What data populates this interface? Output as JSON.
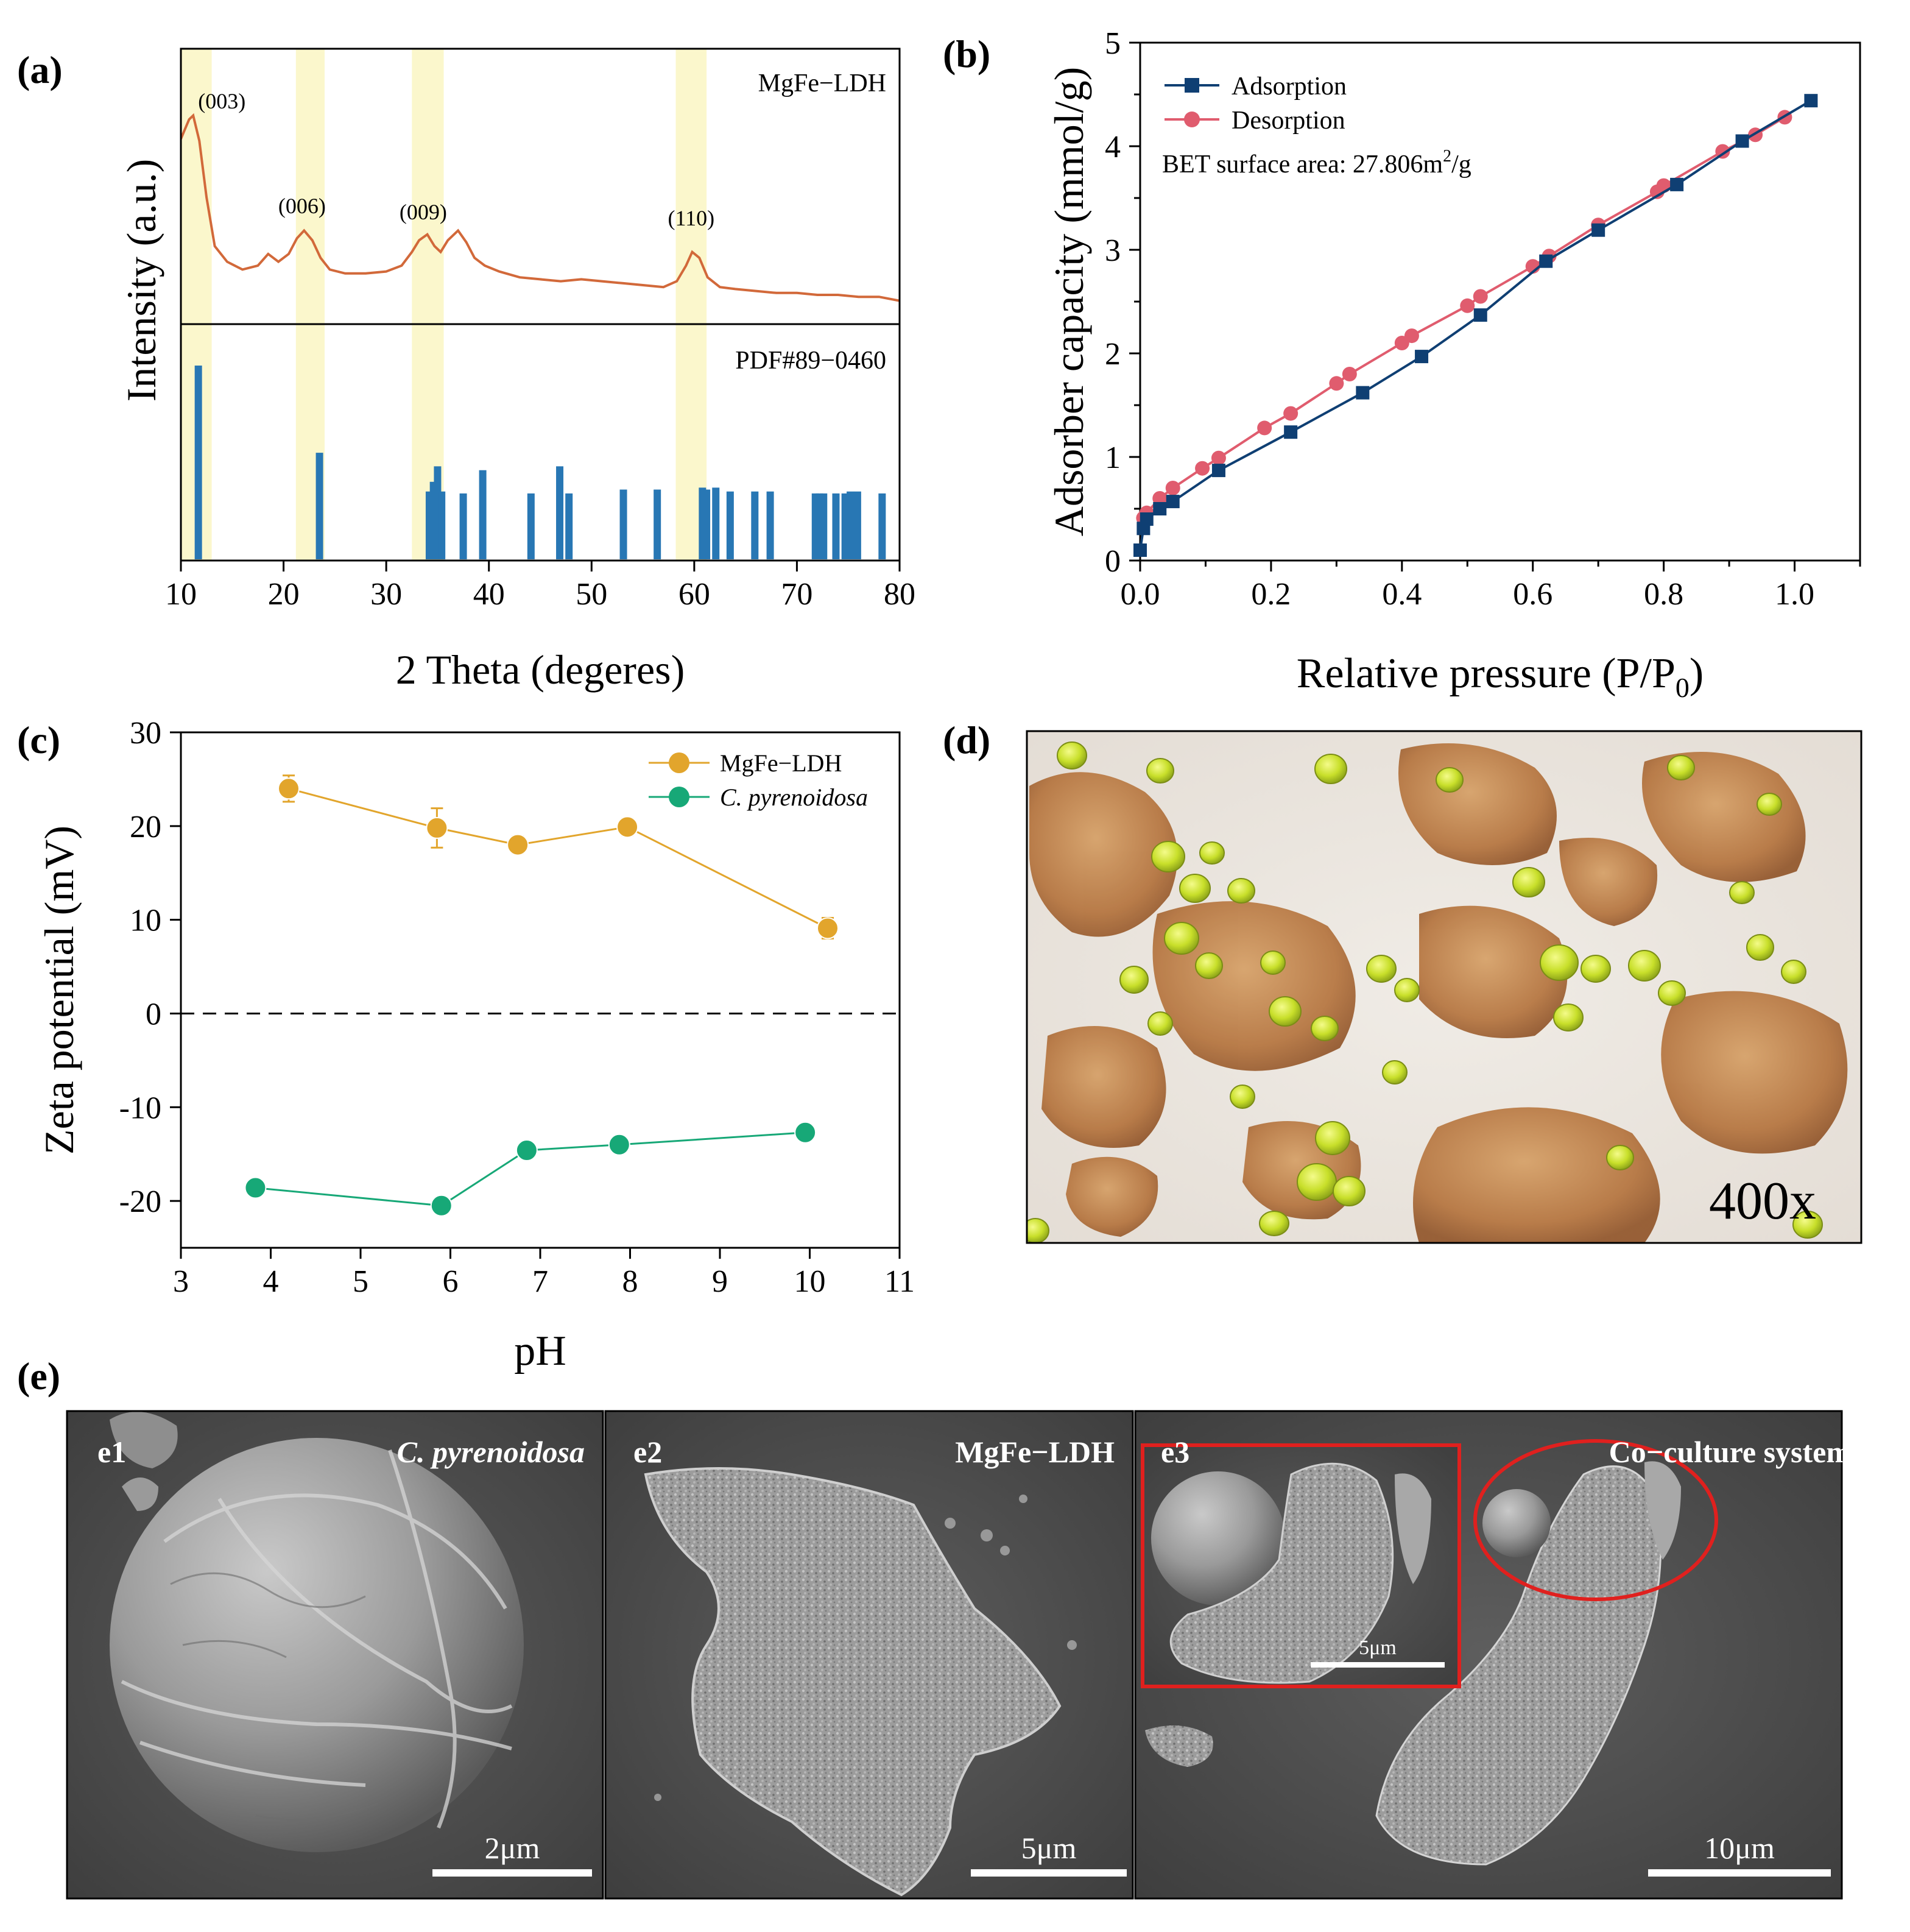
{
  "panel_labels": {
    "a": "(a)",
    "b": "(b)",
    "c": "(c)",
    "d": "(d)",
    "e": "(e)"
  },
  "colors": {
    "xrd_line": "#d2693a",
    "pdf_bar": "#2877b4",
    "highlight": "#fbf7cc",
    "adsorption": "#0f3f73",
    "desorption": "#e05c6e",
    "ldh_series": "#e2a52c",
    "algae_series": "#17a877"
  },
  "chart_data": [
    {
      "id": "a",
      "type": "line",
      "title": "",
      "xlabel": "2 Theta (degeres)",
      "ylabel": "Intensity (a.u.)",
      "xlim": [
        10,
        80
      ],
      "xticks": [
        "10",
        "20",
        "30",
        "40",
        "50",
        "60",
        "70",
        "80"
      ],
      "top_label": "MgFe−LDH",
      "bottom_label": "PDF#89−0460",
      "highlight_bands": [
        [
          10,
          13
        ],
        [
          21.2,
          24
        ],
        [
          32.5,
          35.6
        ],
        [
          58.2,
          61.2
        ]
      ],
      "peaks": [
        {
          "label": "(003)",
          "x": 11.5
        },
        {
          "label": "(006)",
          "x": 21.8
        },
        {
          "label": "(009)",
          "x": 33.6
        },
        {
          "label": "(110)",
          "x": 59.7
        }
      ],
      "pattern": {
        "x": [
          10,
          10.4,
          10.8,
          11.2,
          11.8,
          12.5,
          13.3,
          14.5,
          16,
          17.5,
          18.5,
          19.5,
          20.5,
          21.3,
          22,
          22.8,
          23.6,
          24.5,
          26,
          28,
          30,
          31.5,
          32.5,
          33.2,
          34,
          34.7,
          35.3,
          36,
          37,
          37.8,
          38.6,
          39.6,
          41,
          43,
          45,
          47,
          49,
          51,
          53,
          55,
          57,
          58.3,
          59.2,
          59.8,
          60.5,
          61.3,
          62.5,
          64,
          66,
          68,
          70,
          72,
          74,
          76,
          78,
          80
        ],
        "y": [
          0.85,
          0.9,
          0.95,
          0.97,
          0.84,
          0.55,
          0.3,
          0.22,
          0.18,
          0.2,
          0.26,
          0.22,
          0.26,
          0.34,
          0.38,
          0.33,
          0.24,
          0.18,
          0.16,
          0.16,
          0.17,
          0.2,
          0.27,
          0.33,
          0.36,
          0.3,
          0.27,
          0.33,
          0.38,
          0.32,
          0.24,
          0.2,
          0.17,
          0.14,
          0.13,
          0.12,
          0.13,
          0.12,
          0.11,
          0.1,
          0.09,
          0.12,
          0.2,
          0.27,
          0.24,
          0.14,
          0.09,
          0.08,
          0.07,
          0.06,
          0.06,
          0.05,
          0.05,
          0.04,
          0.04,
          0.02
        ]
      },
      "pdf_lines": [
        {
          "x": 11.7,
          "h": 100
        },
        {
          "x": 23.5,
          "h": 55
        },
        {
          "x": 34.2,
          "h": 35
        },
        {
          "x": 34.6,
          "h": 40
        },
        {
          "x": 35.0,
          "h": 48
        },
        {
          "x": 35.4,
          "h": 35
        },
        {
          "x": 37.5,
          "h": 34
        },
        {
          "x": 39.4,
          "h": 46
        },
        {
          "x": 44.1,
          "h": 34
        },
        {
          "x": 46.9,
          "h": 48
        },
        {
          "x": 47.8,
          "h": 34
        },
        {
          "x": 53.1,
          "h": 36
        },
        {
          "x": 56.4,
          "h": 36
        },
        {
          "x": 60.8,
          "h": 37
        },
        {
          "x": 61.2,
          "h": 36
        },
        {
          "x": 62.1,
          "h": 37
        },
        {
          "x": 63.5,
          "h": 35
        },
        {
          "x": 65.9,
          "h": 35
        },
        {
          "x": 67.4,
          "h": 35
        },
        {
          "x": 71.8,
          "h": 34
        },
        {
          "x": 72.2,
          "h": 34
        },
        {
          "x": 72.6,
          "h": 34
        },
        {
          "x": 73.8,
          "h": 34
        },
        {
          "x": 74.7,
          "h": 34
        },
        {
          "x": 75.2,
          "h": 35
        },
        {
          "x": 75.9,
          "h": 35
        },
        {
          "x": 78.3,
          "h": 34
        }
      ]
    },
    {
      "id": "b",
      "type": "line",
      "title": "",
      "xlabel": "Relative pressure (P/P",
      "xlabel_sub": "0",
      "xlabel_end": ")",
      "ylabel": "Adsorber capacity (mmol/g)",
      "xlim": [
        0,
        1.1
      ],
      "ylim": [
        0,
        5
      ],
      "xticks": [
        "0.0",
        "0.2",
        "0.4",
        "0.6",
        "0.8",
        "1.0"
      ],
      "yticks": [
        "0",
        "1",
        "2",
        "3",
        "4",
        "5"
      ],
      "annotation_prefix": "BET surface area: 27.806m",
      "annotation_sup": "2",
      "annotation_suffix": "/g",
      "series": [
        {
          "name": "Adsorption",
          "marker": "square",
          "x": [
            0.0,
            0.005,
            0.01,
            0.03,
            0.05,
            0.12,
            0.23,
            0.34,
            0.43,
            0.52,
            0.62,
            0.7,
            0.82,
            0.92,
            1.025
          ],
          "y": [
            0.1,
            0.31,
            0.4,
            0.5,
            0.57,
            0.87,
            1.24,
            1.62,
            1.97,
            2.37,
            2.89,
            3.19,
            3.63,
            4.05,
            4.44
          ]
        },
        {
          "name": "Desorption",
          "marker": "circle",
          "x": [
            0.005,
            0.01,
            0.03,
            0.05,
            0.095,
            0.12,
            0.19,
            0.23,
            0.3,
            0.32,
            0.4,
            0.415,
            0.5,
            0.52,
            0.6,
            0.625,
            0.7,
            0.79,
            0.8,
            0.89,
            0.94,
            0.985
          ],
          "y": [
            0.41,
            0.46,
            0.6,
            0.7,
            0.89,
            0.99,
            1.28,
            1.42,
            1.71,
            1.8,
            2.1,
            2.17,
            2.46,
            2.55,
            2.84,
            2.94,
            3.24,
            3.56,
            3.62,
            3.95,
            4.11,
            4.28
          ]
        }
      ]
    },
    {
      "id": "c",
      "type": "scatter",
      "title": "",
      "xlabel": "pH",
      "ylabel": "Zeta potential (mV)",
      "xlim": [
        3,
        11
      ],
      "ylim": [
        -25,
        30
      ],
      "xticks": [
        "3",
        "4",
        "5",
        "6",
        "7",
        "8",
        "9",
        "10",
        "11"
      ],
      "yticks": [
        "-20",
        "-10",
        "0",
        "10",
        "20",
        "30"
      ],
      "zero_line": true,
      "series": [
        {
          "name": "MgFe−LDH",
          "italic": false,
          "x": [
            4.2,
            5.85,
            6.75,
            7.97,
            10.2
          ],
          "y": [
            24,
            19.8,
            18,
            19.9,
            9.1
          ],
          "err": [
            1.4,
            2.1,
            0.9,
            0.9,
            1.1
          ]
        },
        {
          "name": "C. pyrenoidosa",
          "italic": true,
          "x": [
            3.83,
            5.9,
            6.85,
            7.88,
            9.95
          ],
          "y": [
            -18.6,
            -20.5,
            -14.6,
            -14.0,
            -12.7
          ],
          "err": [
            0.7,
            0.8,
            0.7,
            0.8,
            0.7
          ]
        }
      ]
    }
  ],
  "panel_d": {
    "magnification": "400x"
  },
  "panel_e": {
    "e1": {
      "label": "e1",
      "title": "C. pyrenoidosa",
      "scale": "2μm"
    },
    "e2": {
      "label": "e2",
      "title": "MgFe−LDH",
      "scale": "5μm"
    },
    "e3": {
      "label": "e3",
      "title": "Co−culture system",
      "scale": "10μm",
      "inset_scale": "5μm"
    }
  }
}
